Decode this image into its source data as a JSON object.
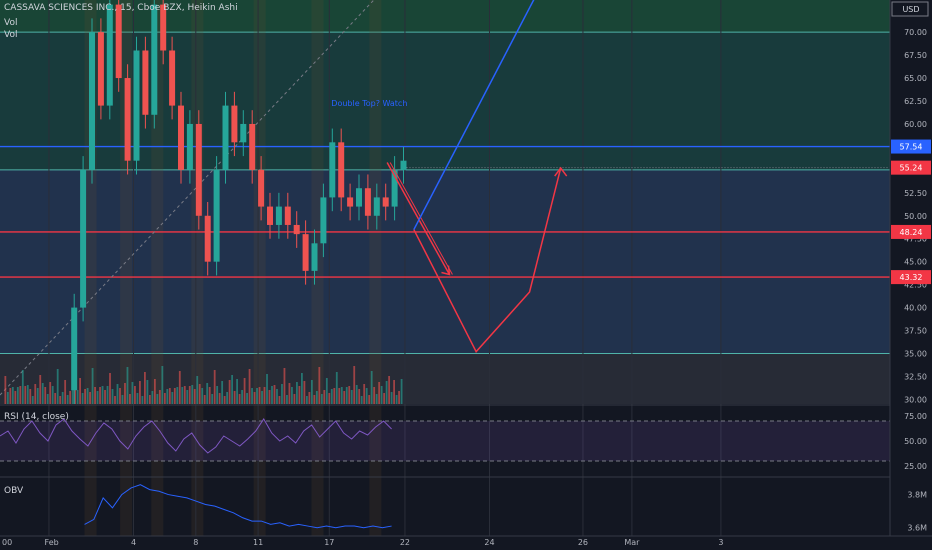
{
  "chart_data": {
    "type": "candlestick",
    "header": {
      "symbol": "CASSAVA SCIENCES INC.",
      "interval": "15",
      "exchange": "Cboe BZX",
      "style": "Heikin Ashi",
      "indicators": [
        "Vol",
        "Vol"
      ]
    },
    "currency": "USD",
    "price_axis": {
      "ticks": [
        "30.00",
        "32.50",
        "35.00",
        "37.50",
        "40.00",
        "42.50",
        "45.00",
        "47.50",
        "50.00",
        "52.50",
        "55.00",
        "57.50",
        "60.00",
        "62.50",
        "65.00",
        "67.50",
        "70.00",
        "72.50"
      ],
      "range": [
        29.5,
        73.5
      ]
    },
    "date_axis": {
      "labels": [
        "00",
        "Feb",
        "4",
        "8",
        "11",
        "17",
        "22",
        "24",
        "26",
        "Mar",
        "3"
      ]
    },
    "horizontal_levels": [
      {
        "value": 57.54,
        "label": "57.54",
        "color": "#2962ff"
      },
      {
        "value": 55.24,
        "label": "55.24",
        "color": "#f23645"
      },
      {
        "value": 48.24,
        "label": "48.24",
        "color": "#f23645"
      },
      {
        "value": 43.32,
        "label": "43.32",
        "color": "#f23645"
      }
    ],
    "zone_lines": [
      70.0,
      55.0,
      35.0
    ],
    "annotation": "Double Top? Watch",
    "price_series": [
      {
        "t": 0.08,
        "o": 31,
        "c": 40
      },
      {
        "t": 0.09,
        "o": 40,
        "c": 55
      },
      {
        "t": 0.1,
        "o": 55,
        "c": 70
      },
      {
        "t": 0.11,
        "o": 70,
        "c": 62
      },
      {
        "t": 0.12,
        "o": 62,
        "c": 73
      },
      {
        "t": 0.13,
        "o": 73,
        "c": 65
      },
      {
        "t": 0.14,
        "o": 65,
        "c": 56
      },
      {
        "t": 0.15,
        "o": 56,
        "c": 68
      },
      {
        "t": 0.16,
        "o": 68,
        "c": 61
      },
      {
        "t": 0.17,
        "o": 61,
        "c": 73
      },
      {
        "t": 0.18,
        "o": 73,
        "c": 68
      },
      {
        "t": 0.19,
        "o": 68,
        "c": 62
      },
      {
        "t": 0.2,
        "o": 62,
        "c": 55
      },
      {
        "t": 0.21,
        "o": 55,
        "c": 60
      },
      {
        "t": 0.22,
        "o": 60,
        "c": 50
      },
      {
        "t": 0.23,
        "o": 50,
        "c": 45
      },
      {
        "t": 0.24,
        "o": 45,
        "c": 55
      },
      {
        "t": 0.25,
        "o": 55,
        "c": 62
      },
      {
        "t": 0.26,
        "o": 62,
        "c": 58
      },
      {
        "t": 0.27,
        "o": 58,
        "c": 60
      },
      {
        "t": 0.28,
        "o": 60,
        "c": 55
      },
      {
        "t": 0.29,
        "o": 55,
        "c": 51
      },
      {
        "t": 0.3,
        "o": 51,
        "c": 49
      },
      {
        "t": 0.31,
        "o": 49,
        "c": 51
      },
      {
        "t": 0.32,
        "o": 51,
        "c": 49
      },
      {
        "t": 0.33,
        "o": 49,
        "c": 48
      },
      {
        "t": 0.34,
        "o": 48,
        "c": 44
      },
      {
        "t": 0.35,
        "o": 44,
        "c": 47
      },
      {
        "t": 0.36,
        "o": 47,
        "c": 52
      },
      {
        "t": 0.37,
        "o": 52,
        "c": 58
      },
      {
        "t": 0.38,
        "o": 58,
        "c": 52
      },
      {
        "t": 0.39,
        "o": 52,
        "c": 51
      },
      {
        "t": 0.4,
        "o": 51,
        "c": 53
      },
      {
        "t": 0.41,
        "o": 53,
        "c": 50
      },
      {
        "t": 0.42,
        "o": 50,
        "c": 52
      },
      {
        "t": 0.43,
        "o": 52,
        "c": 51
      },
      {
        "t": 0.44,
        "o": 51,
        "c": 55
      },
      {
        "t": 0.45,
        "o": 55,
        "c": 56
      }
    ],
    "drawings": {
      "projection_red": [
        {
          "t": 0.465,
          "p": 48.5
        },
        {
          "t": 0.535,
          "p": 35.2
        },
        {
          "t": 0.595,
          "p": 41.7
        },
        {
          "t": 0.63,
          "p": 55.2
        }
      ],
      "arrow_red": [
        {
          "t": 0.435,
          "p": 55.8
        },
        {
          "t": 0.505,
          "p": 43.6
        }
      ],
      "trend_blue": [
        {
          "t": 0.465,
          "p": 48.5
        },
        {
          "t": 0.605,
          "p": 74.5
        }
      ]
    },
    "rsi": {
      "title": "RSI (14, close)",
      "ticks": [
        "75.00",
        "50.00",
        "25.00"
      ],
      "range": [
        15,
        85
      ],
      "bands": [
        70,
        30
      ],
      "values": [
        55,
        60,
        48,
        62,
        70,
        58,
        50,
        66,
        72,
        60,
        52,
        45,
        58,
        68,
        62,
        50,
        42,
        55,
        64,
        70,
        60,
        48,
        40,
        52,
        58,
        46,
        38,
        44,
        55,
        50,
        45,
        52,
        60,
        72,
        58,
        50,
        55,
        48,
        60,
        66,
        54,
        62,
        70,
        58,
        52,
        60,
        56,
        64,
        70,
        62
      ]
    },
    "obv": {
      "title": "OBV",
      "ticks": [
        "3.8M",
        "3.6M"
      ],
      "range": [
        3.55,
        3.9
      ],
      "values": [
        3.62,
        3.65,
        3.78,
        3.72,
        3.8,
        3.84,
        3.86,
        3.83,
        3.82,
        3.8,
        3.79,
        3.78,
        3.76,
        3.74,
        3.73,
        3.71,
        3.69,
        3.66,
        3.64,
        3.64,
        3.62,
        3.63,
        3.61,
        3.62,
        3.61,
        3.6,
        3.61,
        3.6,
        3.61,
        3.61,
        3.6,
        3.61,
        3.6,
        3.61
      ]
    }
  }
}
